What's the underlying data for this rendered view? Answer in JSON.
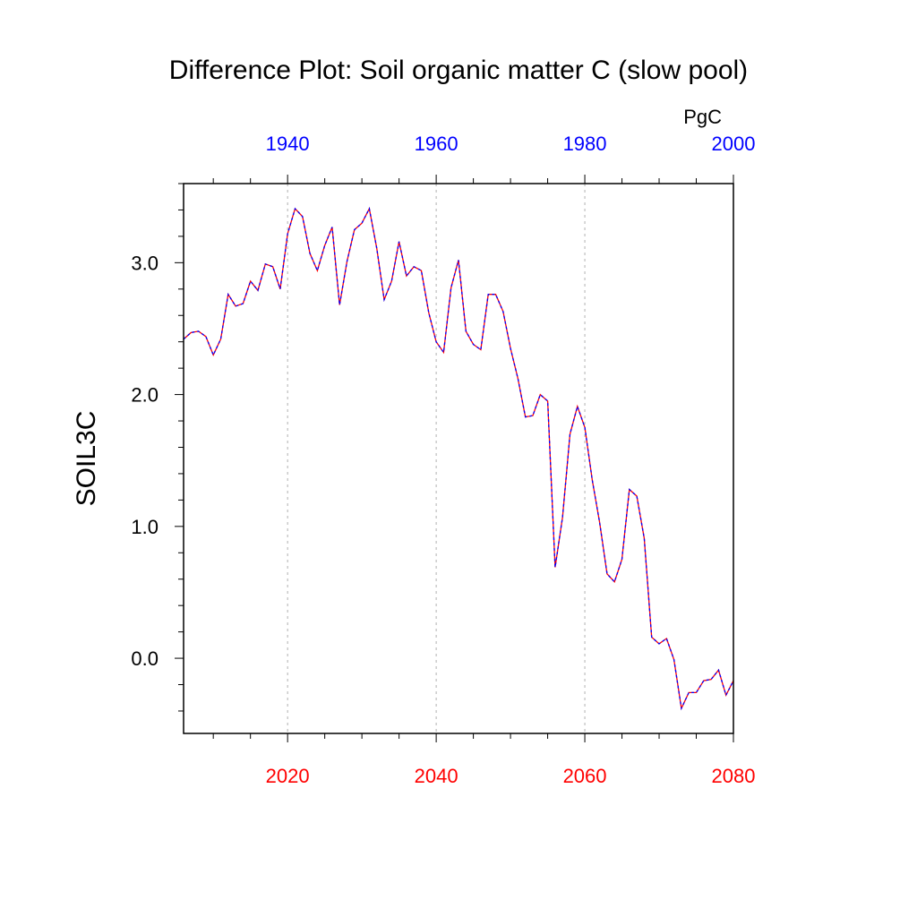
{
  "chart_data": {
    "type": "line",
    "title": "Difference Plot: Soil organic matter C (slow pool)",
    "ylabel": "SOIL3C",
    "units": "PgC",
    "xlim": [
      2006,
      2080
    ],
    "ylim": [
      -0.57,
      3.6
    ],
    "grid": "vertical-dashed",
    "bottom_axis": {
      "color": "#ff0000",
      "ticks": [
        2020,
        2040,
        2060,
        2080
      ],
      "tick_labels": [
        "2020",
        "2040",
        "2060",
        "2080"
      ]
    },
    "top_axis": {
      "color": "#0000ff",
      "offset_years": 80,
      "ticks": [
        1940,
        1960,
        1980,
        2000
      ],
      "tick_labels": [
        "1940",
        "1960",
        "1980",
        "2000"
      ]
    },
    "y_ticks": [
      0.0,
      1.0,
      2.0,
      3.0
    ],
    "y_tick_labels": [
      "0.0",
      "1.0",
      "2.0",
      "3.0"
    ],
    "series": [
      {
        "line_colors": [
          "#ff0000",
          "#0000ff"
        ],
        "x": [
          2006,
          2007,
          2008,
          2009,
          2010,
          2011,
          2012,
          2013,
          2014,
          2015,
          2016,
          2017,
          2018,
          2019,
          2020,
          2021,
          2022,
          2023,
          2024,
          2025,
          2026,
          2027,
          2028,
          2029,
          2030,
          2031,
          2032,
          2033,
          2034,
          2035,
          2036,
          2037,
          2038,
          2039,
          2040,
          2041,
          2042,
          2043,
          2044,
          2045,
          2046,
          2047,
          2048,
          2049,
          2050,
          2051,
          2052,
          2053,
          2054,
          2055,
          2056,
          2057,
          2058,
          2059,
          2060,
          2061,
          2062,
          2063,
          2064,
          2065,
          2066,
          2067,
          2068,
          2069,
          2070,
          2071,
          2072,
          2073,
          2074,
          2075,
          2076,
          2077,
          2078,
          2079,
          2080
        ],
        "y": [
          2.42,
          2.47,
          2.48,
          2.44,
          2.3,
          2.42,
          2.76,
          2.67,
          2.69,
          2.86,
          2.79,
          2.99,
          2.97,
          2.8,
          3.22,
          3.41,
          3.35,
          3.07,
          2.94,
          3.13,
          3.27,
          2.68,
          3.01,
          3.25,
          3.3,
          3.41,
          3.11,
          2.72,
          2.86,
          3.16,
          2.9,
          2.97,
          2.94,
          2.62,
          2.4,
          2.32,
          2.81,
          3.02,
          2.48,
          2.38,
          2.34,
          2.76,
          2.76,
          2.63,
          2.35,
          2.12,
          1.83,
          1.84,
          2.0,
          1.95,
          0.69,
          1.07,
          1.7,
          1.91,
          1.75,
          1.35,
          1.03,
          0.64,
          0.58,
          0.75,
          1.28,
          1.23,
          0.91,
          0.16,
          0.11,
          0.15,
          -0.01,
          -0.38,
          -0.26,
          -0.26,
          -0.17,
          -0.16,
          -0.09,
          -0.28,
          -0.17
        ]
      }
    ]
  }
}
